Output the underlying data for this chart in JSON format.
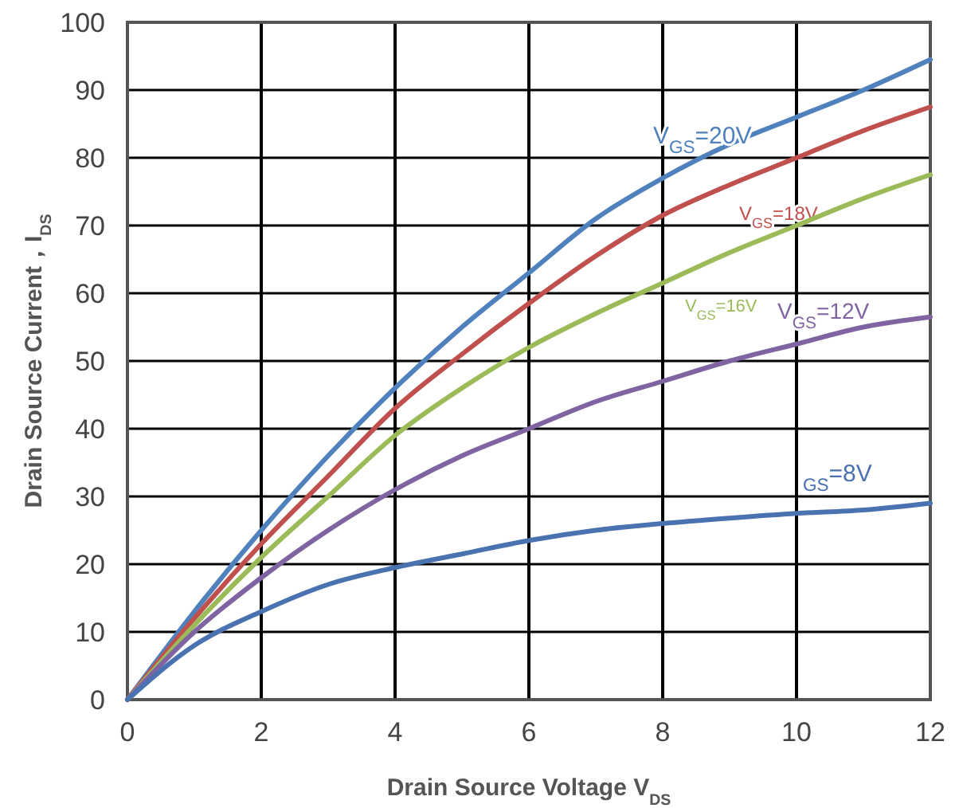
{
  "chart_data": {
    "type": "line",
    "xlabel": "Drain Source Voltage    V$_{DS}$",
    "ylabel": "Drain Source Current，I$_{DS}$",
    "x": [
      0,
      1,
      2,
      3,
      4,
      5,
      6,
      7,
      8,
      9,
      10,
      11,
      12
    ],
    "xlim": [
      0,
      12
    ],
    "xticks": [
      0,
      2,
      4,
      6,
      8,
      10,
      12
    ],
    "ylim": [
      0,
      100
    ],
    "yticks": [
      0,
      10,
      20,
      30,
      40,
      50,
      60,
      70,
      80,
      90,
      100
    ],
    "grid": true,
    "series": [
      {
        "name": "V$_{GS}$=20V",
        "color": "#4f81bd",
        "values": [
          0,
          13,
          25,
          36,
          46,
          55,
          63,
          71,
          77,
          82,
          86,
          90,
          94.5
        ]
      },
      {
        "name": "V$_{GS}$=18V",
        "color": "#c0504d",
        "values": [
          0,
          12,
          23,
          33,
          43,
          51,
          58.5,
          65.5,
          71.5,
          76,
          80,
          84,
          87.5
        ]
      },
      {
        "name": "V$_{GS}$=16V",
        "color": "#9bbb59",
        "values": [
          0,
          11,
          21,
          30,
          39,
          46,
          52,
          57,
          61.5,
          66,
          70,
          74,
          77.5
        ]
      },
      {
        "name": "V$_{GS}$=12V",
        "color": "#8064a2",
        "values": [
          0,
          10,
          18,
          25,
          31,
          36,
          40,
          44,
          47,
          50,
          52.5,
          55,
          56.5
        ]
      },
      {
        "name": "$_{GS}$=8V",
        "color": "#4a72b0",
        "values": [
          0,
          8,
          13,
          17,
          19.5,
          21.5,
          23.5,
          25,
          26,
          26.8,
          27.5,
          28,
          29
        ]
      }
    ]
  }
}
